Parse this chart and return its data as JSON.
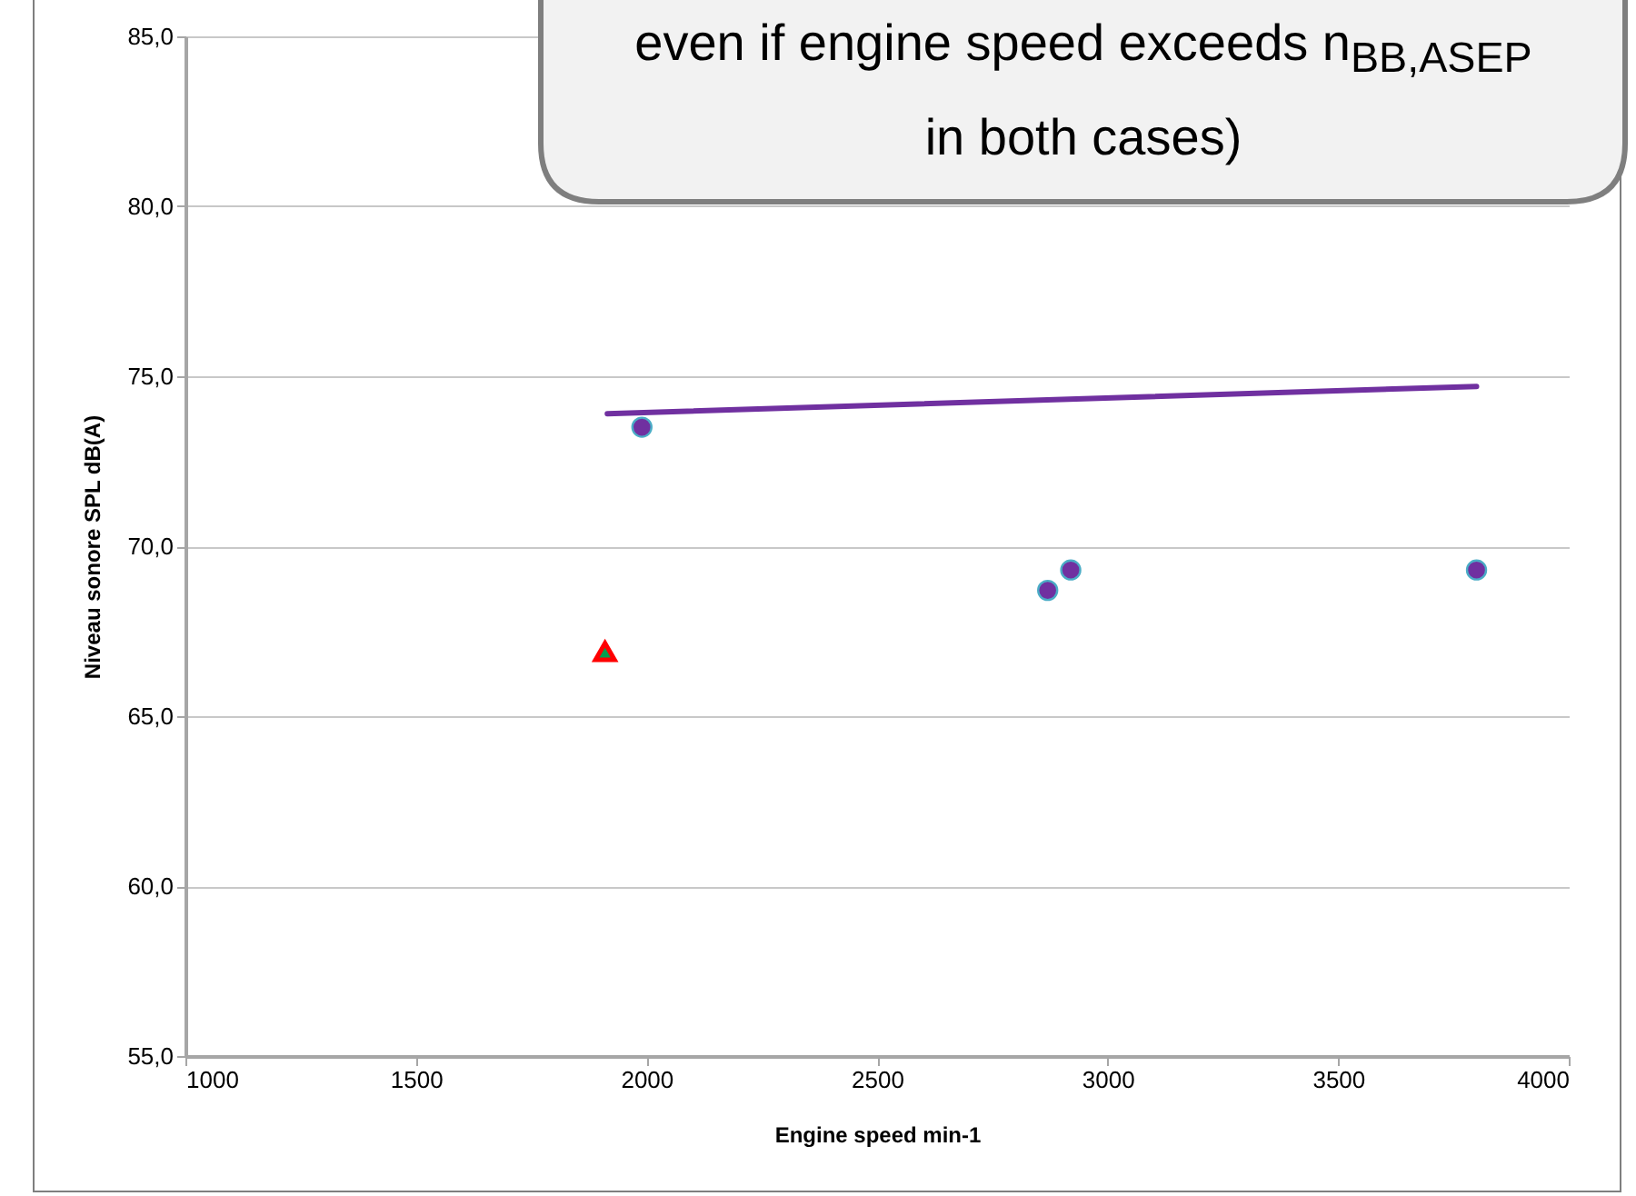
{
  "chart_data": {
    "type": "scatter",
    "xlabel": "Engine speed  min-1",
    "ylabel": "Niveau sonore SPL dB(A)",
    "annotations": [
      "even if engine speed exceeds n$_{BB,ASEP}$ in both cases)"
    ],
    "xlim": [
      1000,
      4000
    ],
    "xticks": [
      1000,
      1500,
      2000,
      2500,
      3000,
      3500,
      4000
    ],
    "ylim": [
      55,
      85
    ],
    "yticks": [
      {
        "value": 55,
        "label": "55,0"
      },
      {
        "value": 60,
        "label": "60,0"
      },
      {
        "value": 65,
        "label": "65,0"
      },
      {
        "value": 70,
        "label": "70,0"
      },
      {
        "value": 75,
        "label": "75,0"
      },
      {
        "value": 80,
        "label": "80,0"
      },
      {
        "value": 85,
        "label": "85,0"
      }
    ],
    "grid": "y",
    "series": [
      {
        "marker": "circle",
        "color": "#7030a0",
        "x": [
          1990,
          2870,
          2920,
          3800
        ],
        "values": [
          73.5,
          68.7,
          69.3,
          69.3
        ]
      },
      {
        "marker": "triangle",
        "color": "#ff0000",
        "x": [
          1910
        ],
        "values": [
          66.9
        ]
      },
      {
        "type": "line",
        "color": "#7030a0",
        "x": [
          1915,
          3800
        ],
        "values": [
          73.9,
          74.7
        ]
      }
    ]
  }
}
